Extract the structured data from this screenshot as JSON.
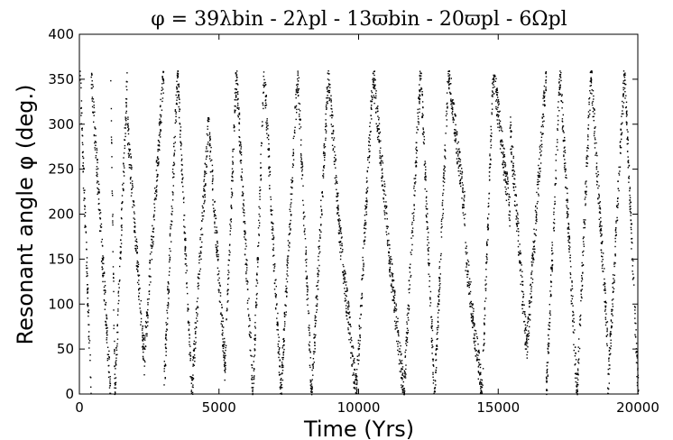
{
  "chart_data": {
    "type": "scatter",
    "title": "φ = 39λbin - 2λpl - 13ϖbin - 20ϖpl - 6Ωpl",
    "xlabel": "Time (Yrs)",
    "ylabel": "Resonant angle φ (deg.)",
    "xlim": [
      0,
      20000
    ],
    "ylim": [
      0,
      400
    ],
    "xticks": [
      0,
      5000,
      10000,
      15000,
      20000
    ],
    "yticks": [
      0,
      50,
      100,
      150,
      200,
      250,
      300,
      350,
      400
    ],
    "xtick_labels": [
      "0",
      "5000",
      "10000",
      "15000",
      "20000"
    ],
    "ytick_labels": [
      "0",
      "50",
      "100",
      "150",
      "200",
      "250",
      "300",
      "350",
      "400"
    ],
    "grid": false,
    "marker_color": "#000000",
    "series": [
      {
        "values_description_note": "",
        "points_period_yrs_segments": [
          {
            "t0": 0,
            "t1": 400,
            "y0": 360,
            "y1": 0
          },
          {
            "t0": 400,
            "t1": 1100,
            "y0": 360,
            "y1": 0
          },
          {
            "t0": 1100,
            "t1": 1250,
            "y0": 360,
            "y1": 0
          },
          {
            "t0": 1250,
            "t1": 1700,
            "y0": 0,
            "y1": 360
          },
          {
            "t0": 1700,
            "t1": 2300,
            "y0": 300,
            "y1": 40
          },
          {
            "t0": 2300,
            "t1": 3000,
            "y0": 40,
            "y1": 360
          },
          {
            "t0": 3000,
            "t1": 3500,
            "y0": 0,
            "y1": 360
          },
          {
            "t0": 3500,
            "t1": 4000,
            "y0": 360,
            "y1": 0
          },
          {
            "t0": 4000,
            "t1": 4600,
            "y0": 0,
            "y1": 300
          },
          {
            "t0": 4600,
            "t1": 5200,
            "y0": 300,
            "y1": 30
          },
          {
            "t0": 5200,
            "t1": 5600,
            "y0": 30,
            "y1": 360
          },
          {
            "t0": 5600,
            "t1": 6200,
            "y0": 360,
            "y1": 0
          },
          {
            "t0": 6200,
            "t1": 6600,
            "y0": 0,
            "y1": 360
          },
          {
            "t0": 6600,
            "t1": 7200,
            "y0": 360,
            "y1": 0
          },
          {
            "t0": 7200,
            "t1": 7800,
            "y0": 0,
            "y1": 360
          },
          {
            "t0": 7800,
            "t1": 8300,
            "y0": 360,
            "y1": 0
          },
          {
            "t0": 8300,
            "t1": 8900,
            "y0": 0,
            "y1": 360
          },
          {
            "t0": 8900,
            "t1": 9300,
            "y0": 360,
            "y1": 180
          },
          {
            "t0": 9300,
            "t1": 9900,
            "y0": 180,
            "y1": 0
          },
          {
            "t0": 9900,
            "t1": 10500,
            "y0": 0,
            "y1": 360
          },
          {
            "t0": 10500,
            "t1": 11100,
            "y0": 360,
            "y1": 150
          },
          {
            "t0": 11100,
            "t1": 11600,
            "y0": 150,
            "y1": 0
          },
          {
            "t0": 11600,
            "t1": 12200,
            "y0": 0,
            "y1": 360
          },
          {
            "t0": 12200,
            "t1": 12700,
            "y0": 360,
            "y1": 0
          },
          {
            "t0": 12700,
            "t1": 13200,
            "y0": 0,
            "y1": 360
          },
          {
            "t0": 13200,
            "t1": 13800,
            "y0": 360,
            "y1": 200
          },
          {
            "t0": 13800,
            "t1": 14400,
            "y0": 160,
            "y1": 0
          },
          {
            "t0": 14400,
            "t1": 14800,
            "y0": 0,
            "y1": 360
          },
          {
            "t0": 14800,
            "t1": 15400,
            "y0": 360,
            "y1": 200
          },
          {
            "t0": 15400,
            "t1": 16000,
            "y0": 300,
            "y1": 50
          },
          {
            "t0": 16000,
            "t1": 16700,
            "y0": 50,
            "y1": 360
          },
          {
            "t0": 16700,
            "t1": 17200,
            "y0": 0,
            "y1": 360
          },
          {
            "t0": 17200,
            "t1": 17800,
            "y0": 360,
            "y1": 0
          },
          {
            "t0": 17800,
            "t1": 18300,
            "y0": 0,
            "y1": 360
          },
          {
            "t0": 18300,
            "t1": 18900,
            "y0": 360,
            "y1": 60
          },
          {
            "t0": 18900,
            "t1": 19500,
            "y0": 0,
            "y1": 360
          },
          {
            "t0": 19500,
            "t1": 20000,
            "y0": 360,
            "y1": 0
          }
        ]
      }
    ]
  }
}
